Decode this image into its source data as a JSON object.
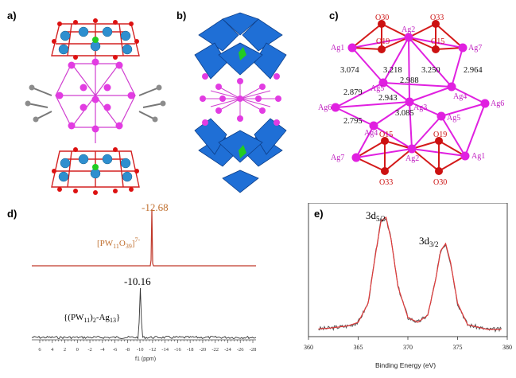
{
  "panels": {
    "a": "a)",
    "b": "b)",
    "c": "c)",
    "d": "d)",
    "e": "e)"
  },
  "colors": {
    "oxygen": "#dd1111",
    "tungsten": "#2e8fcf",
    "silver": "#e23ce2",
    "phosphorus": "#22cc22",
    "carbon": "#8c8c8c",
    "polyhedra": "#1f6fd6",
    "nmr_red": "#c0392b",
    "xps_fit": "#e03a3a",
    "label_orange": "#c07030"
  },
  "ag_diagram": {
    "atoms": {
      "o30_top": "O30",
      "o33_top": "O33",
      "o19_top": "O19",
      "o15_top": "O15",
      "ag2_top": "Ag2",
      "ag1_left": "Ag1",
      "ag7_right": "Ag7",
      "ag5_left": "Ag5",
      "ag4_right": "Ag4",
      "ag6_left": "Ag6",
      "ag3": "Ag3",
      "ag6_right": "Ag6",
      "ag4_left": "Ag4",
      "ag5_right": "Ag5",
      "ag7_left": "Ag7",
      "o15_bot": "O15",
      "o19_bot": "O19",
      "ag2_bot": "Ag2",
      "ag1_right": "Ag1",
      "o33_bot": "O33",
      "o30_bot": "O30"
    },
    "distances": {
      "d3074": "3.074",
      "d3218": "3.218",
      "d3250": "3.250",
      "d2964": "2.964",
      "d2988": "2.988",
      "d2879": "2.879",
      "d2943": "2.943",
      "d2795": "2.795",
      "d3085": "3.085"
    }
  },
  "nmr": {
    "peak_top_value": "-12.68",
    "peak_bottom_value": "-10.16",
    "label_top": "[PW",
    "label_top_sub1": "11",
    "label_top_mid": "O",
    "label_top_sub2": "39",
    "label_top_end": "]",
    "label_top_sup": "7-",
    "label_bottom_pre": "{(PW",
    "label_bottom_sub1": "11",
    "label_bottom_mid": ")",
    "label_bottom_sub2": "2",
    "label_bottom_mid2": "-Ag",
    "label_bottom_sub3": "13",
    "label_bottom_end": "}",
    "axis_title": "f1 (ppm)",
    "tick_labels": [
      "6",
      "4",
      "2",
      "0",
      "-2",
      "-4",
      "-6",
      "-8",
      "-10",
      "-12",
      "-14",
      "-16",
      "-18",
      "-20",
      "-22",
      "-24",
      "-26",
      "-28"
    ]
  },
  "xps": {
    "peak1_label": "3d",
    "peak1_sub": "5/2",
    "peak2_label": "3d",
    "peak2_sub": "3/2",
    "xlabel": "Binding Energy (eV)",
    "tick_labels": [
      "360",
      "365",
      "370",
      "375",
      "380"
    ]
  },
  "chart_data": {
    "type": "line",
    "xlabel": "Binding Energy (eV)",
    "ylabel": "",
    "xlim": [
      360,
      380
    ],
    "annotations": [
      "3d5/2",
      "3d3/2"
    ],
    "series": [
      {
        "name": "",
        "x": [
          360,
          362,
          364,
          365,
          366,
          366.8,
          367.3,
          367.8,
          368.3,
          369,
          370,
          371,
          372,
          372.8,
          373.3,
          373.8,
          374.3,
          375,
          376,
          378,
          380
        ],
        "values": [
          0.06,
          0.07,
          0.09,
          0.12,
          0.28,
          0.72,
          0.97,
          1.0,
          0.82,
          0.42,
          0.16,
          0.12,
          0.18,
          0.48,
          0.72,
          0.78,
          0.62,
          0.28,
          0.1,
          0.06,
          0.06
        ]
      }
    ]
  }
}
